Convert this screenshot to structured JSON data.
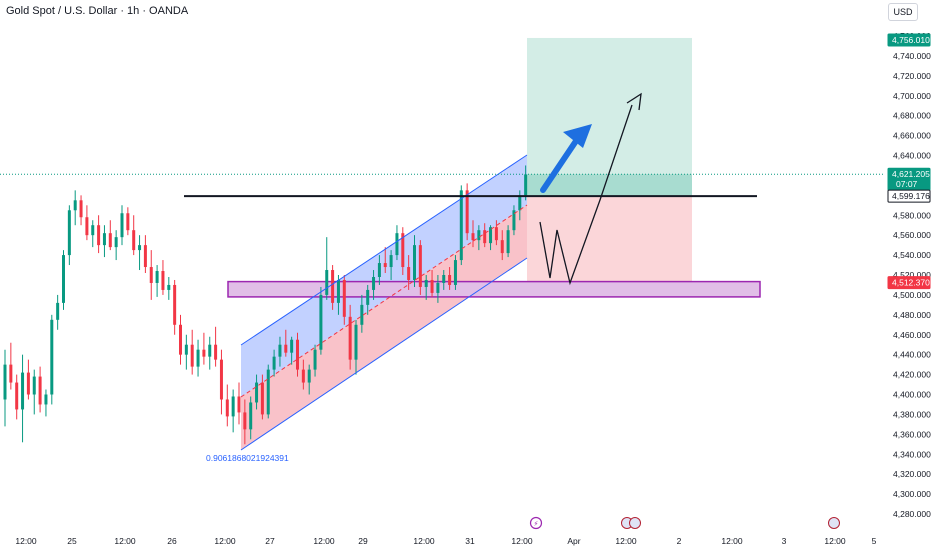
{
  "header": {
    "symbol_title": "Gold Spot / U.S. Dollar · 1h · OANDA",
    "currency": "USD"
  },
  "colors": {
    "candle_up": "#089981",
    "candle_down": "#f23645",
    "channel_upper": "#b3c5ff",
    "channel_lower": "#f7b3bb",
    "target_zone": "#d3ede6",
    "stop_zone": "#fbd6d9",
    "support_zone": "#e1bee7",
    "support_border": "#9c27b0",
    "arrow": "#1e6fe0",
    "current_price": "#089981",
    "entry_label": "#ffffff",
    "support_label": "#f23645"
  },
  "chart_data": {
    "type": "candlestick",
    "title": "Gold Spot / U.S. Dollar · 1h · OANDA",
    "currency": "USD",
    "y_ticks": [
      4280,
      4300,
      4320,
      4340,
      4360,
      4380,
      4400,
      4420,
      4440,
      4460,
      4480,
      4500,
      4520,
      4540,
      4560,
      4580,
      4600,
      4620,
      4640,
      4660,
      4680,
      4700,
      4720,
      4740,
      4760
    ],
    "y_tick_labels": [
      "4,280.000",
      "4,300.000",
      "4,320.000",
      "4,340.000",
      "4,360.000",
      "4,380.000",
      "4,400.000",
      "4,420.000",
      "4,440.000",
      "4,460.000",
      "4,480.000",
      "4,500.000",
      "4,520.000",
      "4,540.000",
      "4,560.000",
      "4,580.000",
      "4,600.000",
      "4,620.000",
      "4,640.000",
      "4,660.000",
      "4,680.000",
      "4,700.000",
      "4,720.000",
      "4,740.000",
      "4,760.000"
    ],
    "ylim": [
      4265,
      4775
    ],
    "x_ticks": [
      "12:00",
      "25",
      "12:00",
      "26",
      "12:00",
      "27",
      "12:00",
      "29",
      "12:00",
      "31",
      "12:00",
      "Apr",
      "12:00",
      "2",
      "12:00",
      "3",
      "12:00",
      "5"
    ],
    "price_labels": {
      "target": {
        "value": 4756.01,
        "text": "4,756.010"
      },
      "current": {
        "value": 4621.205,
        "text": "4,621.205",
        "countdown": "07:07"
      },
      "entry": {
        "value": 4599.176,
        "text": "4,599.176"
      },
      "support": {
        "value": 4512.37,
        "text": "4,512.370"
      }
    },
    "annotations": {
      "fib_label": "0.9061868021924391",
      "resistance_level": 4599.176,
      "support_zone": [
        4498,
        4512.37
      ],
      "target_zone": [
        4599.176,
        4756.01
      ],
      "stop_zone": [
        4512.37,
        4599.176
      ]
    },
    "candles": [
      {
        "o": 4395,
        "h": 4445,
        "l": 4368,
        "c": 4430
      },
      {
        "o": 4430,
        "h": 4452,
        "l": 4405,
        "c": 4412
      },
      {
        "o": 4412,
        "h": 4420,
        "l": 4375,
        "c": 4385
      },
      {
        "o": 4385,
        "h": 4440,
        "l": 4352,
        "c": 4422
      },
      {
        "o": 4422,
        "h": 4435,
        "l": 4395,
        "c": 4400
      },
      {
        "o": 4400,
        "h": 4425,
        "l": 4380,
        "c": 4418
      },
      {
        "o": 4418,
        "h": 4428,
        "l": 4382,
        "c": 4390
      },
      {
        "o": 4390,
        "h": 4405,
        "l": 4378,
        "c": 4400
      },
      {
        "o": 4400,
        "h": 4480,
        "l": 4390,
        "c": 4475
      },
      {
        "o": 4475,
        "h": 4500,
        "l": 4465,
        "c": 4492
      },
      {
        "o": 4492,
        "h": 4545,
        "l": 4485,
        "c": 4540
      },
      {
        "o": 4540,
        "h": 4590,
        "l": 4530,
        "c": 4585
      },
      {
        "o": 4585,
        "h": 4605,
        "l": 4570,
        "c": 4595
      },
      {
        "o": 4595,
        "h": 4600,
        "l": 4570,
        "c": 4578
      },
      {
        "o": 4578,
        "h": 4590,
        "l": 4555,
        "c": 4560
      },
      {
        "o": 4560,
        "h": 4575,
        "l": 4548,
        "c": 4570
      },
      {
        "o": 4570,
        "h": 4580,
        "l": 4542,
        "c": 4550
      },
      {
        "o": 4550,
        "h": 4570,
        "l": 4538,
        "c": 4562
      },
      {
        "o": 4562,
        "h": 4575,
        "l": 4545,
        "c": 4548
      },
      {
        "o": 4548,
        "h": 4565,
        "l": 4535,
        "c": 4558
      },
      {
        "o": 4558,
        "h": 4590,
        "l": 4550,
        "c": 4582
      },
      {
        "o": 4582,
        "h": 4588,
        "l": 4560,
        "c": 4565
      },
      {
        "o": 4565,
        "h": 4580,
        "l": 4540,
        "c": 4545
      },
      {
        "o": 4545,
        "h": 4560,
        "l": 4525,
        "c": 4550
      },
      {
        "o": 4550,
        "h": 4560,
        "l": 4522,
        "c": 4528
      },
      {
        "o": 4528,
        "h": 4545,
        "l": 4495,
        "c": 4512
      },
      {
        "o": 4512,
        "h": 4530,
        "l": 4498,
        "c": 4524
      },
      {
        "o": 4524,
        "h": 4535,
        "l": 4500,
        "c": 4505
      },
      {
        "o": 4505,
        "h": 4518,
        "l": 4495,
        "c": 4510
      },
      {
        "o": 4510,
        "h": 4515,
        "l": 4460,
        "c": 4470
      },
      {
        "o": 4470,
        "h": 4480,
        "l": 4430,
        "c": 4440
      },
      {
        "o": 4440,
        "h": 4460,
        "l": 4425,
        "c": 4450
      },
      {
        "o": 4450,
        "h": 4465,
        "l": 4420,
        "c": 4428
      },
      {
        "o": 4428,
        "h": 4455,
        "l": 4418,
        "c": 4445
      },
      {
        "o": 4445,
        "h": 4462,
        "l": 4430,
        "c": 4438
      },
      {
        "o": 4438,
        "h": 4458,
        "l": 4425,
        "c": 4450
      },
      {
        "o": 4450,
        "h": 4468,
        "l": 4428,
        "c": 4435
      },
      {
        "o": 4435,
        "h": 4445,
        "l": 4380,
        "c": 4395
      },
      {
        "o": 4395,
        "h": 4410,
        "l": 4368,
        "c": 4378
      },
      {
        "o": 4378,
        "h": 4405,
        "l": 4362,
        "c": 4398
      },
      {
        "o": 4398,
        "h": 4412,
        "l": 4370,
        "c": 4382
      },
      {
        "o": 4382,
        "h": 4395,
        "l": 4350,
        "c": 4365
      },
      {
        "o": 4365,
        "h": 4398,
        "l": 4355,
        "c": 4392
      },
      {
        "o": 4392,
        "h": 4420,
        "l": 4385,
        "c": 4412
      },
      {
        "o": 4412,
        "h": 4420,
        "l": 4375,
        "c": 4380
      },
      {
        "o": 4380,
        "h": 4430,
        "l": 4376,
        "c": 4425
      },
      {
        "o": 4425,
        "h": 4445,
        "l": 4418,
        "c": 4438
      },
      {
        "o": 4438,
        "h": 4458,
        "l": 4428,
        "c": 4450
      },
      {
        "o": 4450,
        "h": 4465,
        "l": 4438,
        "c": 4442
      },
      {
        "o": 4442,
        "h": 4458,
        "l": 4430,
        "c": 4455
      },
      {
        "o": 4455,
        "h": 4462,
        "l": 4418,
        "c": 4425
      },
      {
        "o": 4425,
        "h": 4435,
        "l": 4405,
        "c": 4412
      },
      {
        "o": 4412,
        "h": 4430,
        "l": 4400,
        "c": 4425
      },
      {
        "o": 4425,
        "h": 4450,
        "l": 4418,
        "c": 4445
      },
      {
        "o": 4445,
        "h": 4508,
        "l": 4440,
        "c": 4500
      },
      {
        "o": 4500,
        "h": 4558,
        "l": 4495,
        "c": 4525
      },
      {
        "o": 4525,
        "h": 4530,
        "l": 4485,
        "c": 4492
      },
      {
        "o": 4492,
        "h": 4520,
        "l": 4480,
        "c": 4515
      },
      {
        "o": 4515,
        "h": 4520,
        "l": 4470,
        "c": 4478
      },
      {
        "o": 4478,
        "h": 4490,
        "l": 4425,
        "c": 4435
      },
      {
        "o": 4435,
        "h": 4475,
        "l": 4420,
        "c": 4470
      },
      {
        "o": 4470,
        "h": 4500,
        "l": 4462,
        "c": 4490
      },
      {
        "o": 4490,
        "h": 4510,
        "l": 4480,
        "c": 4505
      },
      {
        "o": 4505,
        "h": 4525,
        "l": 4495,
        "c": 4518
      },
      {
        "o": 4518,
        "h": 4540,
        "l": 4510,
        "c": 4532
      },
      {
        "o": 4532,
        "h": 4548,
        "l": 4522,
        "c": 4528
      },
      {
        "o": 4528,
        "h": 4545,
        "l": 4515,
        "c": 4540
      },
      {
        "o": 4540,
        "h": 4570,
        "l": 4535,
        "c": 4562
      },
      {
        "o": 4562,
        "h": 4568,
        "l": 4520,
        "c": 4528
      },
      {
        "o": 4528,
        "h": 4540,
        "l": 4505,
        "c": 4515
      },
      {
        "o": 4515,
        "h": 4560,
        "l": 4508,
        "c": 4550
      },
      {
        "o": 4550,
        "h": 4555,
        "l": 4500,
        "c": 4508
      },
      {
        "o": 4508,
        "h": 4520,
        "l": 4495,
        "c": 4515
      },
      {
        "o": 4515,
        "h": 4525,
        "l": 4498,
        "c": 4502
      },
      {
        "o": 4502,
        "h": 4520,
        "l": 4492,
        "c": 4512
      },
      {
        "o": 4512,
        "h": 4525,
        "l": 4505,
        "c": 4520
      },
      {
        "o": 4520,
        "h": 4528,
        "l": 4505,
        "c": 4510
      },
      {
        "o": 4510,
        "h": 4540,
        "l": 4505,
        "c": 4535
      },
      {
        "o": 4535,
        "h": 4610,
        "l": 4530,
        "c": 4605
      },
      {
        "o": 4605,
        "h": 4612,
        "l": 4555,
        "c": 4562
      },
      {
        "o": 4562,
        "h": 4575,
        "l": 4548,
        "c": 4555
      },
      {
        "o": 4555,
        "h": 4570,
        "l": 4545,
        "c": 4565
      },
      {
        "o": 4565,
        "h": 4572,
        "l": 4548,
        "c": 4552
      },
      {
        "o": 4552,
        "h": 4570,
        "l": 4545,
        "c": 4568
      },
      {
        "o": 4568,
        "h": 4575,
        "l": 4550,
        "c": 4555
      },
      {
        "o": 4555,
        "h": 4565,
        "l": 4535,
        "c": 4542
      },
      {
        "o": 4542,
        "h": 4570,
        "l": 4538,
        "c": 4565
      },
      {
        "o": 4565,
        "h": 4590,
        "l": 4560,
        "c": 4585
      },
      {
        "o": 4585,
        "h": 4605,
        "l": 4575,
        "c": 4600
      },
      {
        "o": 4600,
        "h": 4630,
        "l": 4595,
        "c": 4621
      }
    ]
  }
}
